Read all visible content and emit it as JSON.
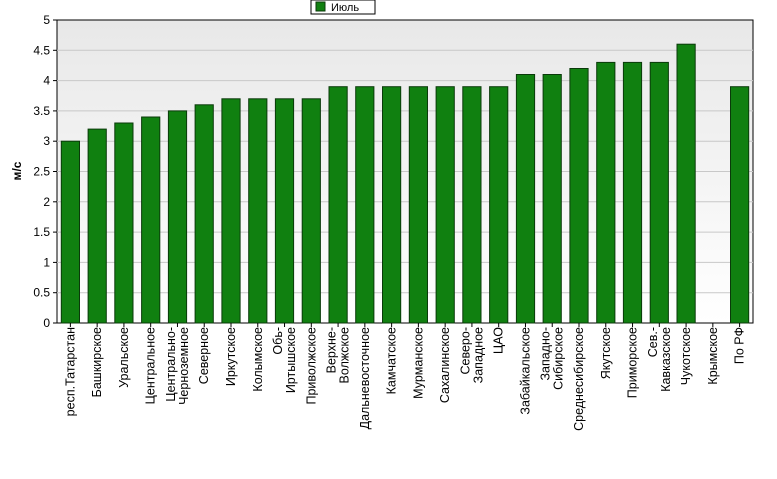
{
  "chart_data": {
    "type": "bar",
    "ylabel": "м/с",
    "ylim": [
      0,
      5
    ],
    "yticks": [
      "0",
      "0.5",
      "1",
      "1.5",
      "2",
      "2.5",
      "3",
      "3.5",
      "4",
      "4.5",
      "5"
    ],
    "grid": true,
    "legend_position": "top-center",
    "colors": {
      "bar": "#108010",
      "bar_border": "#0a3a0a",
      "plot_bg_top": "#e8e8e8",
      "plot_bg_bottom": "#ffffff"
    },
    "series": [
      {
        "name": "Июль",
        "categories": [
          "респ.Татарстан",
          "Башкирское",
          "Уральское",
          "Центральное",
          "Центрально-\nЧерноземное",
          "Северное",
          "Иркутское",
          "Колымское",
          "Обь-\nИртышское",
          "Приволжское",
          "Верхне-\nВолжское",
          "Дальневосточное",
          "Камчатское",
          "Мурманское",
          "Сахалинское",
          "Северо-\nЗападное",
          "ЦАО",
          "Забайкальское",
          "Западно-\nСибирское",
          "Среднесибирское",
          "Якутское",
          "Приморское",
          "Сев.-\nКавказское",
          "Чукотское",
          "Крымское",
          "По РФ"
        ],
        "values": [
          3.0,
          3.2,
          3.3,
          3.4,
          3.5,
          3.6,
          3.7,
          3.7,
          3.7,
          3.7,
          3.9,
          3.9,
          3.9,
          3.9,
          3.9,
          3.9,
          3.9,
          4.1,
          4.1,
          4.2,
          4.3,
          4.3,
          4.3,
          4.6,
          null,
          3.9
        ]
      }
    ]
  }
}
